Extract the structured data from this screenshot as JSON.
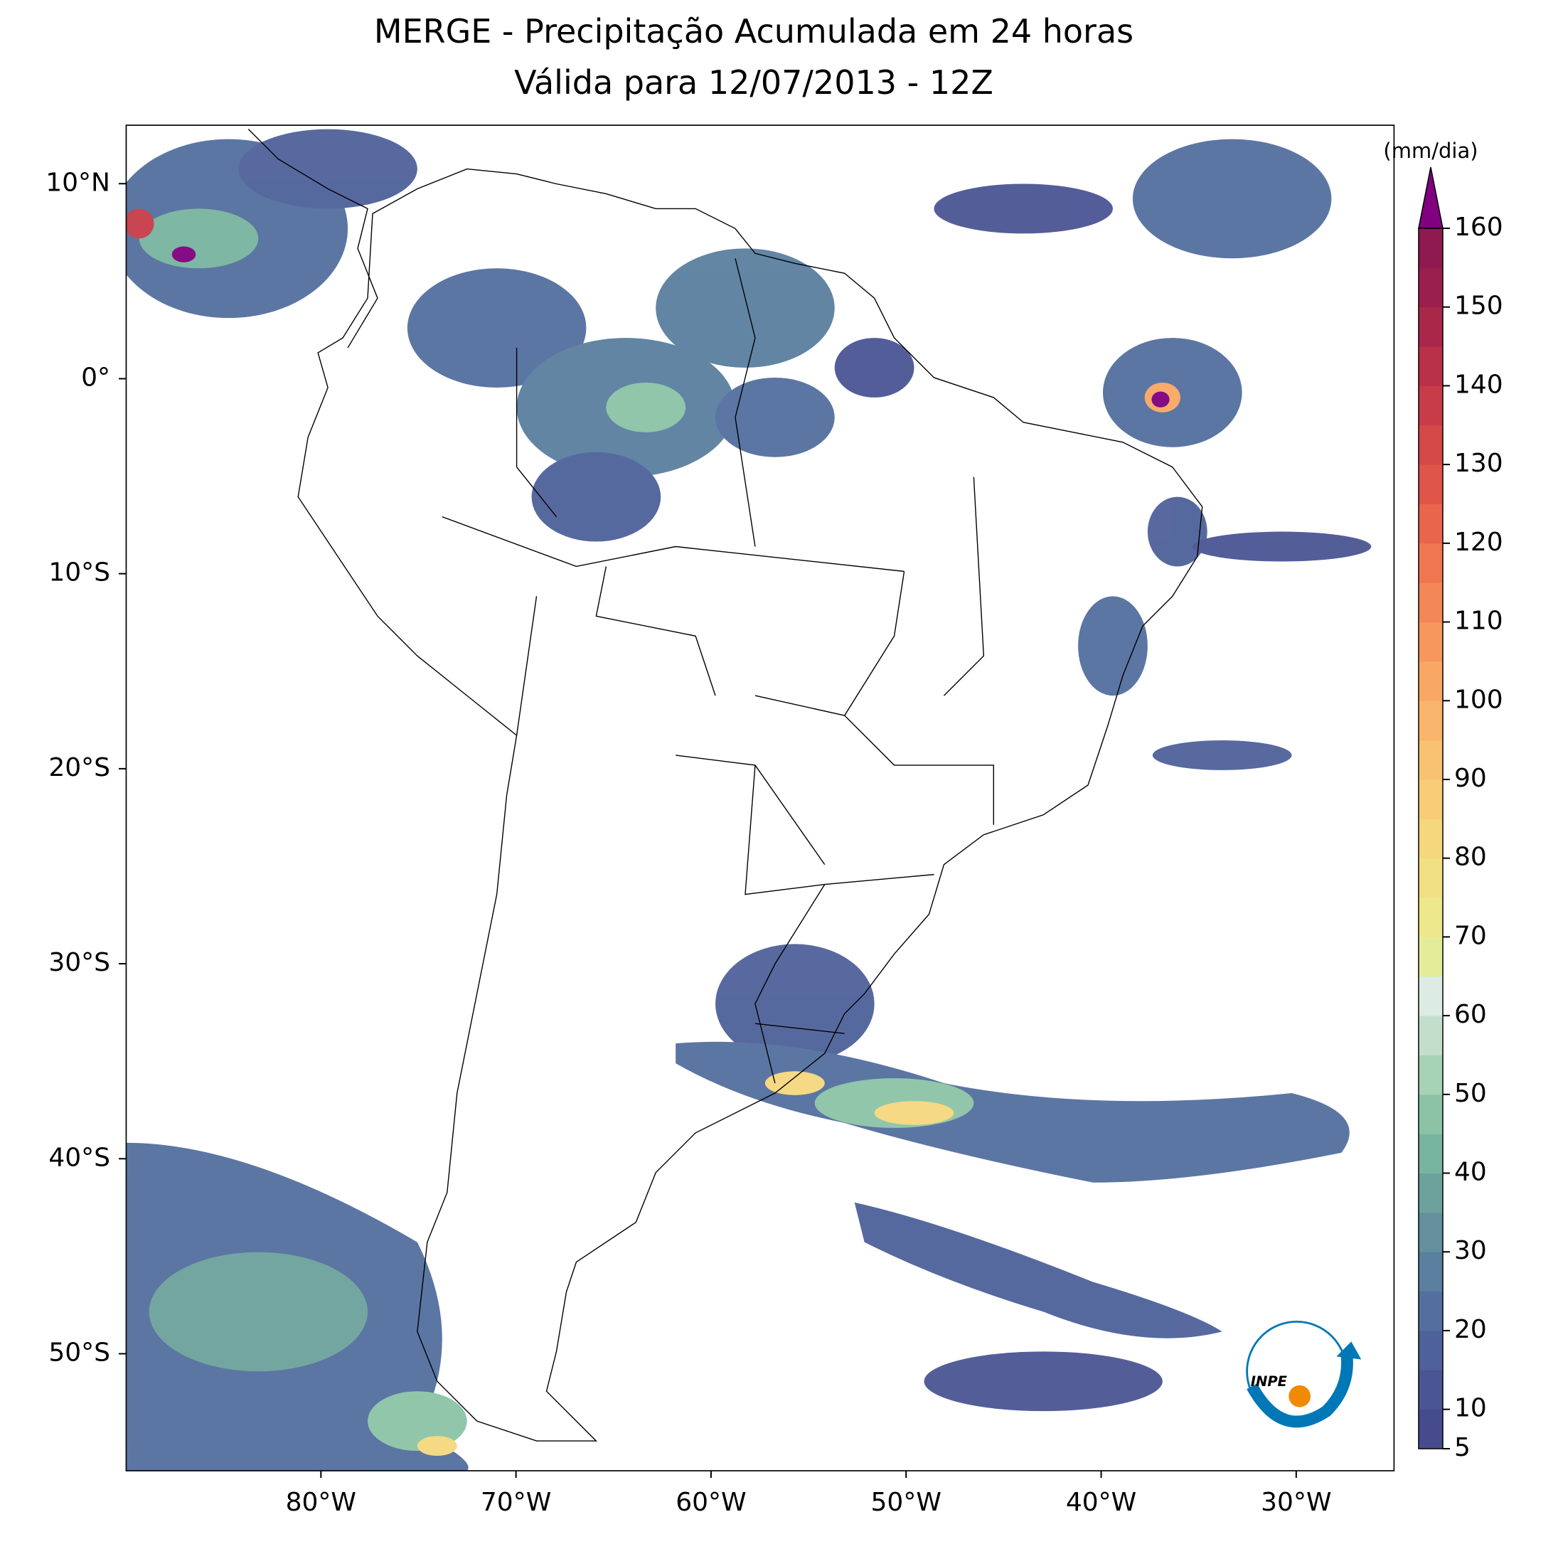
{
  "title": [
    "MERGE - Precipitação Acumulada em 24 horas",
    "Válida para 12/07/2013 - 12Z"
  ],
  "map": {
    "xlim": [
      -90,
      -25
    ],
    "ylim": [
      -56,
      13
    ],
    "xticks": [
      {
        "value": -80,
        "label": "80°W"
      },
      {
        "value": -70,
        "label": "70°W"
      },
      {
        "value": -60,
        "label": "60°W"
      },
      {
        "value": -50,
        "label": "50°W"
      },
      {
        "value": -40,
        "label": "40°W"
      },
      {
        "value": -30,
        "label": "30°W"
      }
    ],
    "yticks": [
      {
        "value": 10,
        "label": "10°N"
      },
      {
        "value": 0,
        "label": "0°"
      },
      {
        "value": -10,
        "label": "10°S"
      },
      {
        "value": -20,
        "label": "20°S"
      },
      {
        "value": -30,
        "label": "30°S"
      },
      {
        "value": -40,
        "label": "40°S"
      },
      {
        "value": -50,
        "label": "50°S"
      }
    ]
  },
  "colorbar": {
    "label": "(mm/dia)",
    "lim": [
      5,
      160
    ],
    "ticks": [
      5,
      10,
      20,
      30,
      40,
      50,
      60,
      70,
      80,
      90,
      100,
      110,
      120,
      130,
      140,
      150,
      160
    ],
    "colors": [
      "#464b8e",
      "#4a5594",
      "#4e619a",
      "#536f9f",
      "#5a7f9f",
      "#63909c",
      "#6ca29b",
      "#78b49f",
      "#8cc3a7",
      "#a6d2b6",
      "#c2dfcb",
      "#dcebe3",
      "#e3ed99",
      "#eee88c",
      "#f2e085",
      "#f5d77e",
      "#f8cd78",
      "#f9c272",
      "#f9b56b",
      "#f8a764",
      "#f6985d",
      "#f38757",
      "#ef7651",
      "#e9654c",
      "#e05549",
      "#d44848",
      "#c73c48",
      "#b83148",
      "#a92849",
      "#9b1f4d",
      "#8e1a50"
    ],
    "extend_color": "#800080"
  },
  "logo": "INPE"
}
